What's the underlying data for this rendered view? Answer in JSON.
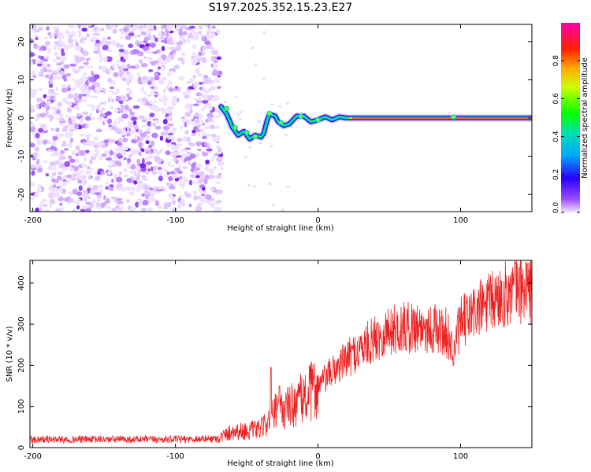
{
  "title": "S197.2025.352.15.23.E27",
  "chart_data": [
    {
      "type": "heatmap",
      "title": "S197.2025.352.15.23.E27",
      "xlabel": "Height of straight line (km)",
      "ylabel": "Frequency (Hz)",
      "xlim": [
        -202,
        150
      ],
      "ylim": [
        -24.5,
        24.5
      ],
      "xticks": [
        -200,
        -100,
        0,
        100
      ],
      "yticks": [
        -20,
        -10,
        0,
        10,
        20
      ],
      "noise_region_km": [
        -202,
        -68
      ],
      "signal_onset_km": -68,
      "signal_track": [
        {
          "x": -68,
          "y": 3.0
        },
        {
          "x": -64,
          "y": 1.0
        },
        {
          "x": -60,
          "y": -2.5
        },
        {
          "x": -56,
          "y": -4.5
        },
        {
          "x": -52,
          "y": -3.5
        },
        {
          "x": -48,
          "y": -5.5
        },
        {
          "x": -44,
          "y": -4.5
        },
        {
          "x": -40,
          "y": -5.0
        },
        {
          "x": -38,
          "y": -4.0
        },
        {
          "x": -36,
          "y": -1.0
        },
        {
          "x": -34,
          "y": 1.0
        },
        {
          "x": -30,
          "y": 0.5
        },
        {
          "x": -28,
          "y": -1.0
        },
        {
          "x": -24,
          "y": -2.0
        },
        {
          "x": -20,
          "y": -1.5
        },
        {
          "x": -15,
          "y": 0.5
        },
        {
          "x": -10,
          "y": 0.5
        },
        {
          "x": -5,
          "y": -1.0
        },
        {
          "x": 0,
          "y": -0.5
        },
        {
          "x": 5,
          "y": 0.3
        },
        {
          "x": 10,
          "y": -0.5
        },
        {
          "x": 15,
          "y": 0.3
        },
        {
          "x": 20,
          "y": 0.0
        },
        {
          "x": 150,
          "y": 0.0
        }
      ],
      "colorbar": {
        "label": "Normalized spectral amplitude",
        "range": [
          0,
          1
        ],
        "ticks": [
          0.0,
          0.2,
          0.4,
          0.6,
          0.8
        ]
      }
    },
    {
      "type": "line",
      "xlabel": "Height of straight line (km)",
      "ylabel": "SNR (10 * v/v)",
      "xlim": [
        -202,
        150
      ],
      "ylim": [
        0,
        455
      ],
      "xticks": [
        -200,
        -100,
        0,
        100
      ],
      "yticks": [
        0,
        100,
        200,
        300,
        400
      ],
      "series": [
        {
          "name": "SNR",
          "color": "#ee2222",
          "envelope": [
            {
              "x": -202,
              "y": 20
            },
            {
              "x": -150,
              "y": 20
            },
            {
              "x": -100,
              "y": 20
            },
            {
              "x": -70,
              "y": 22
            },
            {
              "x": -60,
              "y": 40
            },
            {
              "x": -50,
              "y": 40
            },
            {
              "x": -40,
              "y": 45
            },
            {
              "x": -30,
              "y": 85
            },
            {
              "x": -25,
              "y": 90
            },
            {
              "x": -20,
              "y": 100
            },
            {
              "x": -10,
              "y": 120
            },
            {
              "x": 0,
              "y": 150
            },
            {
              "x": 10,
              "y": 185
            },
            {
              "x": 20,
              "y": 215
            },
            {
              "x": 30,
              "y": 240
            },
            {
              "x": 40,
              "y": 265
            },
            {
              "x": 50,
              "y": 285
            },
            {
              "x": 60,
              "y": 290
            },
            {
              "x": 70,
              "y": 295
            },
            {
              "x": 80,
              "y": 290
            },
            {
              "x": 90,
              "y": 280
            },
            {
              "x": 95,
              "y": 240
            },
            {
              "x": 100,
              "y": 300
            },
            {
              "x": 110,
              "y": 330
            },
            {
              "x": 120,
              "y": 350
            },
            {
              "x": 130,
              "y": 370
            },
            {
              "x": 140,
              "y": 385
            },
            {
              "x": 150,
              "y": 380
            }
          ],
          "spikes": [
            {
              "x": -33,
              "y": 195
            },
            {
              "x": -27,
              "y": 150
            },
            {
              "x": 95,
              "y": 200
            },
            {
              "x": 146,
              "y": 450
            }
          ]
        }
      ]
    }
  ]
}
